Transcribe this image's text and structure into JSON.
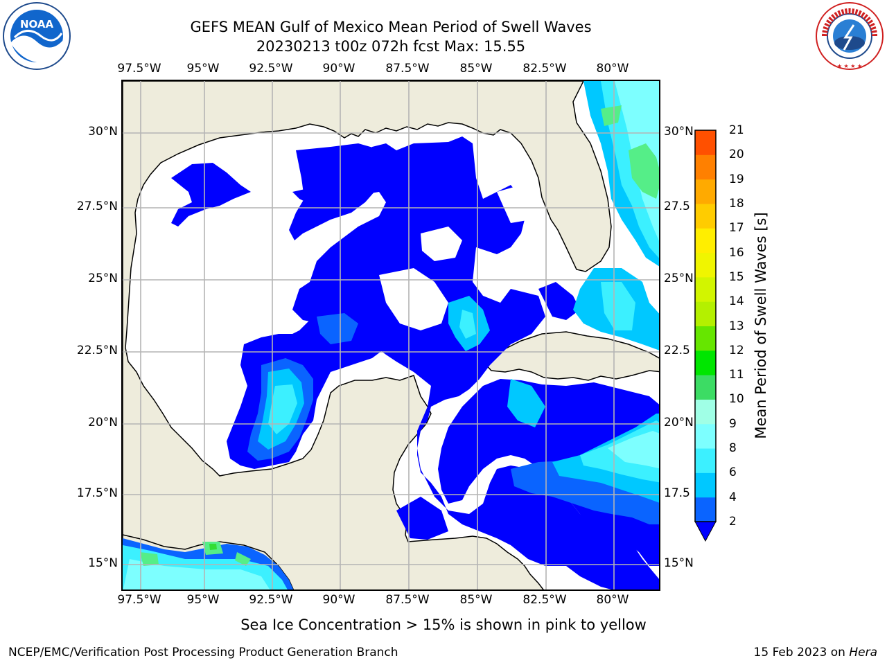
{
  "title": {
    "line1": "GEFS MEAN Gulf of Mexico Mean Period of Swell Waves",
    "line2": "20230213 t00z 072h fcst   Max: 15.55"
  },
  "longitude_ticks": [
    "97.5°W",
    "95°W",
    "92.5°W",
    "90°W",
    "87.5°W",
    "85°W",
    "82.5°W",
    "80°W"
  ],
  "latitude_ticks": [
    "30°N",
    "27.5°N",
    "25°N",
    "22.5°N",
    "20°N",
    "17.5°N",
    "15°N"
  ],
  "right_latitude_ticks": [
    "30°N",
    "27.5",
    "25°N",
    "22.5",
    "20°N",
    "17.5",
    "15°N"
  ],
  "colorbar": {
    "label": "Mean Period of Swell Waves [s]",
    "ticks": [
      "21",
      "20",
      "19",
      "18",
      "17",
      "16",
      "15",
      "14",
      "13",
      "12",
      "11",
      "10",
      "9",
      "8",
      "6",
      "4",
      "2"
    ],
    "levels": [
      2,
      4,
      6,
      8,
      9,
      10,
      11,
      12,
      13,
      14,
      15,
      16,
      17,
      18,
      19,
      20,
      21
    ],
    "colors": [
      "#0a64ff",
      "#00c8ff",
      "#3cf0ff",
      "#7dffff",
      "#a0ffe6",
      "#3cdc64",
      "#00e600",
      "#66e600",
      "#b4f000",
      "#d2f500",
      "#f0f500",
      "#ffee00",
      "#ffcc00",
      "#ffaa00",
      "#ff8000",
      "#ff5000",
      "#ff2000",
      "#ff0000"
    ],
    "under_color": "#0000ff"
  },
  "map_colors": {
    "land": "#eeecdc",
    "ocean_low": "#0000ff",
    "period_4": "#0a64ff",
    "period_6": "#00c8ff",
    "period_8": "#3cf0ff",
    "period_9": "#7dffff",
    "period_10": "#55ee88",
    "period_11": "#33dd33",
    "gridline": "#b4b4b4"
  },
  "note": "Sea Ice Concentration > 15% is shown in pink to yellow",
  "footer": {
    "left": "NCEP/EMC/Verification Post Processing Product Generation Branch",
    "right_date": "15 Feb 2023 on ",
    "right_host": "Hera"
  },
  "logos": {
    "noaa": "NOAA",
    "nws": "NATIONAL WEATHER SERVICE"
  }
}
